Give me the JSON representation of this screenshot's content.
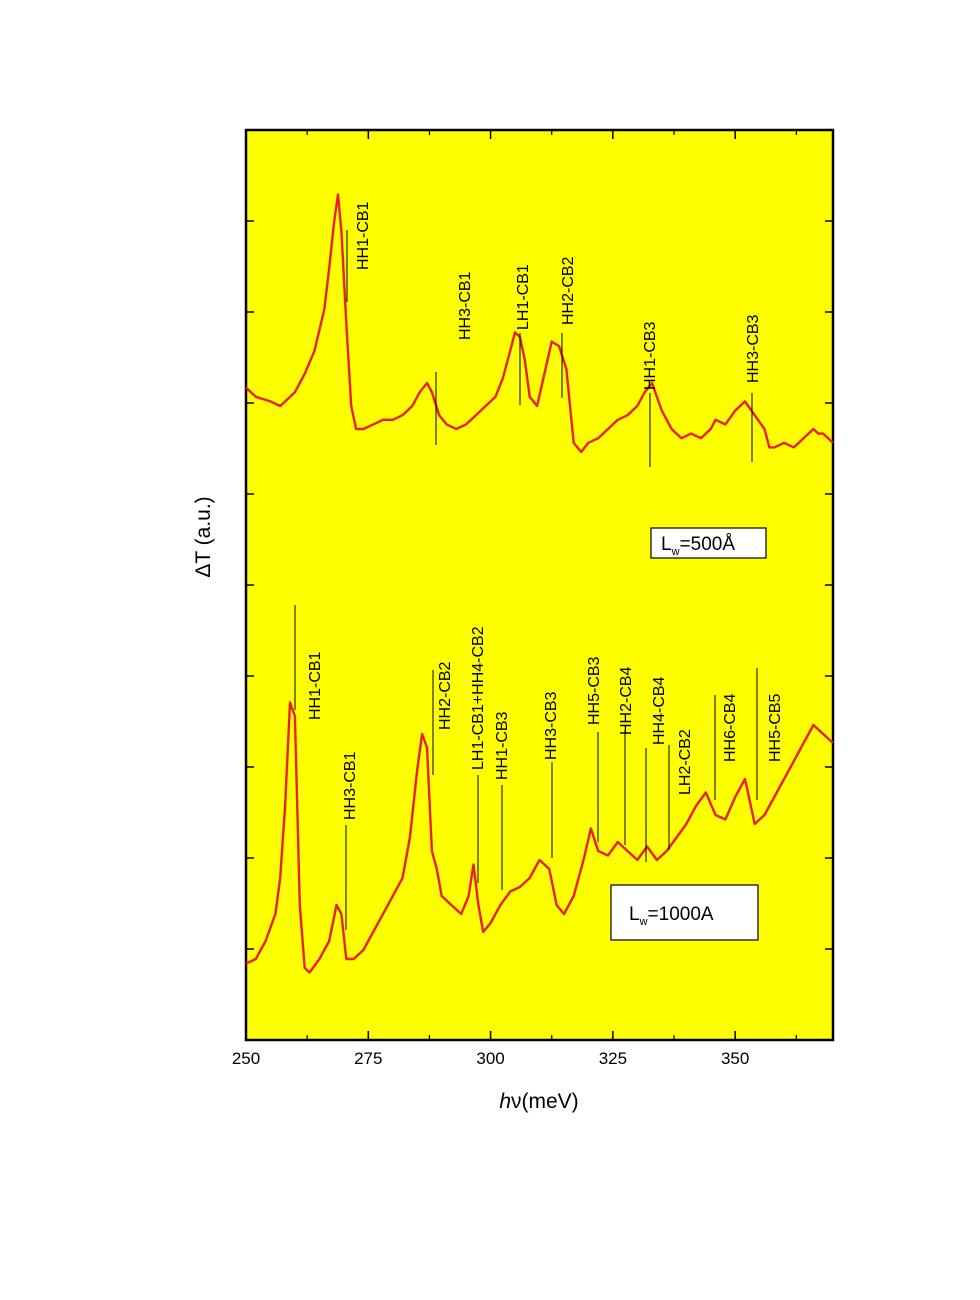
{
  "chart_data": {
    "type": "line",
    "title": "",
    "xlabel_prefix": "h",
    "xlabel_nu": "ν",
    "xlabel_unit": "(meV)",
    "ylabel": "ΔT (a.u.)",
    "xlim": [
      250,
      370
    ],
    "x_ticks": [
      250,
      275,
      300,
      325,
      350
    ],
    "x_tick_labels": [
      "250",
      "275",
      "300",
      "325",
      "350"
    ],
    "y_ticks_shown": false,
    "grid": false,
    "background": "#ffff00",
    "line_color": "#e8202a",
    "series": [
      {
        "label_main": "L",
        "label_sub": "w",
        "label_rest": "=500Å",
        "ylim": [
          0,
          100
        ],
        "x": [
          250,
          252,
          255,
          257,
          260,
          262,
          264,
          266,
          267,
          268,
          268.8,
          269.5,
          270.5,
          271.5,
          272.5,
          274,
          276,
          278,
          280,
          282,
          284,
          285.5,
          287,
          288,
          289.5,
          291,
          293,
          295,
          297,
          299,
          301,
          302.5,
          304,
          305,
          306,
          307,
          308,
          309.5,
          311,
          312.5,
          314,
          315.5,
          317,
          318.5,
          320,
          322,
          324,
          326,
          328,
          330,
          331.5,
          333,
          335,
          337,
          339,
          341,
          343,
          345,
          346,
          348,
          350,
          352,
          354,
          356,
          357,
          358,
          360,
          362,
          364,
          366,
          367,
          368,
          369,
          370
        ],
        "y": [
          44,
          42,
          41,
          40,
          43,
          47,
          52,
          61,
          70,
          80,
          86,
          78,
          58,
          40,
          35,
          35,
          36,
          37,
          37,
          38,
          40,
          43,
          45,
          43,
          38,
          36,
          35,
          36,
          38,
          40,
          42,
          46,
          52,
          56,
          55,
          50,
          42,
          40,
          47,
          54,
          53,
          48,
          32,
          30,
          32,
          33,
          35,
          37,
          38,
          40,
          43,
          45,
          39,
          35,
          33,
          34,
          33,
          35,
          37,
          36,
          39,
          41,
          38,
          35,
          31,
          31,
          32,
          31,
          33,
          35,
          34,
          34,
          33,
          32
        ]
      },
      {
        "label_main": "L",
        "label_sub": "w",
        "label_rest": "=1000A",
        "ylim": [
          0,
          100
        ],
        "x": [
          250,
          252,
          254,
          256,
          257,
          258,
          259,
          260,
          261,
          262,
          263,
          265,
          267,
          268.5,
          269.5,
          270.5,
          272,
          274,
          276,
          278,
          280,
          282,
          283.5,
          285,
          286,
          287,
          288,
          289,
          290,
          292,
          294,
          295.5,
          296.5,
          297.5,
          298.5,
          300,
          302,
          304,
          306,
          308,
          310,
          312,
          313.5,
          315,
          317,
          319,
          320.5,
          322,
          324,
          326,
          328,
          330,
          332,
          334,
          336,
          338,
          340,
          342,
          344,
          346,
          348,
          350,
          352,
          354,
          356,
          358,
          360,
          362,
          364,
          366,
          368,
          370
        ],
        "y": [
          17,
          18,
          22,
          28,
          36,
          52,
          75,
          72,
          30,
          16,
          15,
          18,
          22,
          30,
          28,
          18,
          18,
          20,
          24,
          28,
          32,
          36,
          45,
          60,
          68,
          65,
          42,
          38,
          32,
          30,
          28,
          32,
          39,
          30,
          24,
          26,
          30,
          33,
          34,
          36,
          40,
          38,
          30,
          28,
          32,
          40,
          47,
          42,
          41,
          44,
          42,
          40,
          43,
          40,
          42,
          45,
          48,
          52,
          55,
          50,
          49,
          54,
          58,
          48,
          50,
          54,
          58,
          62,
          66,
          70,
          68,
          66
        ]
      }
    ],
    "annotations_top": [
      "HH1-CB1",
      "HH3-CB1",
      "LH1-CB1",
      "HH2-CB2",
      "HH1-CB3",
      "HH3-CB3"
    ],
    "annotations_bottom": [
      "HH1-CB1",
      "HH3-CB1",
      "HH2-CB2",
      "LH1-CB1+HH4-CB2",
      "HH1-CB3",
      "HH3-CB3",
      "HH5-CB3",
      "HH2-CB4",
      "HH4-CB4",
      "LH2-CB2",
      "HH6-CB4",
      "HH5-CB5"
    ]
  }
}
